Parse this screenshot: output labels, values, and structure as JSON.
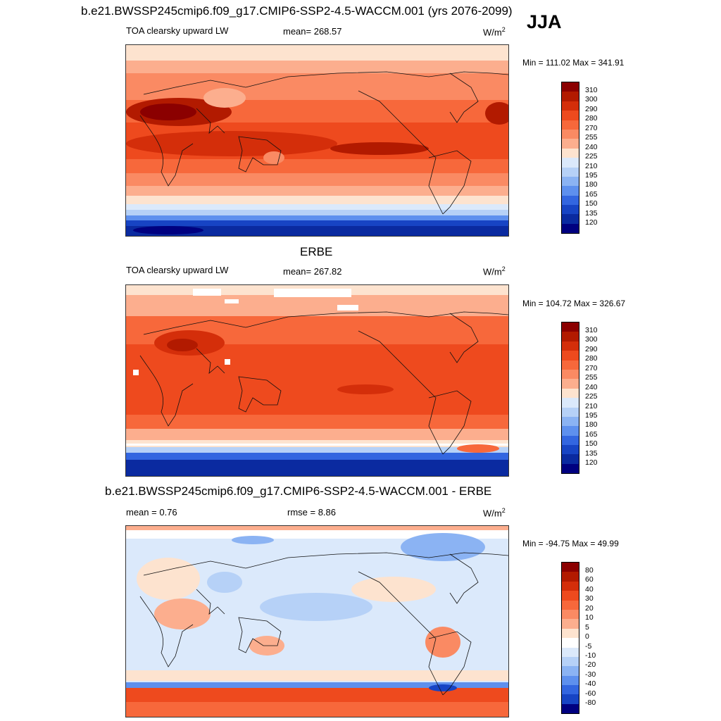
{
  "main_title": "b.e21.BWSSP245cmip6.f09_g17.CMIP6-SSP2-4.5-WACCM.001 (yrs 2076-2099)",
  "season": "JJA",
  "panels": [
    {
      "title": "",
      "left_label": "TOA clearsky upward LW",
      "center_label": "mean= 268.57",
      "units": "W/m",
      "units_sup": "2",
      "minmax": "Min = 111.02 Max = 341.91",
      "colorbar_labels": [
        "310",
        "300",
        "290",
        "280",
        "270",
        "255",
        "240",
        "225",
        "210",
        "195",
        "180",
        "165",
        "150",
        "135",
        "120"
      ]
    },
    {
      "title": "ERBE",
      "left_label": "TOA clearsky upward LW",
      "center_label": "mean= 267.82",
      "units": "W/m",
      "units_sup": "2",
      "minmax": "Min = 104.72 Max = 326.67",
      "colorbar_labels": [
        "310",
        "300",
        "290",
        "280",
        "270",
        "255",
        "240",
        "225",
        "210",
        "195",
        "180",
        "165",
        "150",
        "135",
        "120"
      ]
    },
    {
      "title": "b.e21.BWSSP245cmip6.f09_g17.CMIP6-SSP2-4.5-WACCM.001 - ERBE",
      "left_label": "mean =   0.76",
      "center_label": "rmse =   8.86",
      "units": "W/m",
      "units_sup": "2",
      "minmax": "Min = -94.75 Max =  49.99",
      "colorbar_labels": [
        "80",
        "60",
        "40",
        "30",
        "20",
        "10",
        "5",
        "0",
        "-5",
        "-10",
        "-20",
        "-30",
        "-40",
        "-60",
        "-80"
      ]
    }
  ],
  "colors": {
    "abs_scale": [
      "#8b0000",
      "#b21a00",
      "#d42e0a",
      "#ee4a1e",
      "#f7683b",
      "#fa8a63",
      "#fcae8e",
      "#fde3cf",
      "#dbe9fb",
      "#b6d1f7",
      "#8bb3f3",
      "#5e90ee",
      "#3366e0",
      "#1744c4",
      "#0a2aa0",
      "#000080"
    ],
    "diff_scale": [
      "#8b0000",
      "#b21a00",
      "#d42e0a",
      "#ee4a1e",
      "#f7683b",
      "#fa8a63",
      "#fcae8e",
      "#fde3cf",
      "#ffffff",
      "#dbe9fb",
      "#b6d1f7",
      "#8bb3f3",
      "#5e90ee",
      "#3366e0",
      "#1744c4",
      "#000080"
    ]
  }
}
